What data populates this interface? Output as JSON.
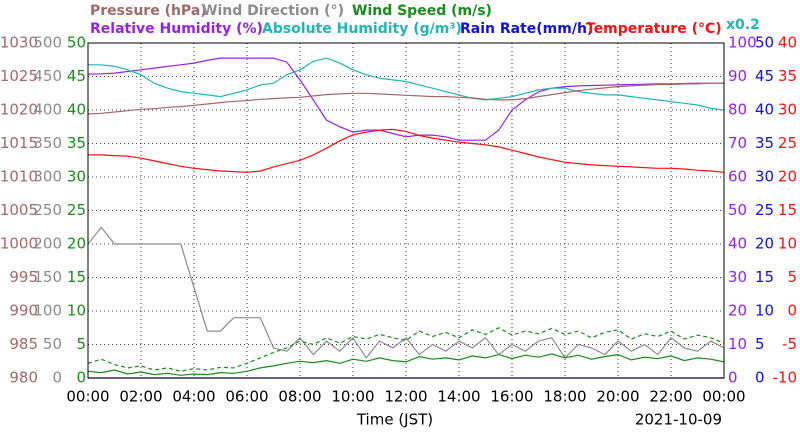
{
  "chart_data": {
    "type": "line",
    "x": [
      0,
      0.5,
      1,
      1.5,
      2,
      2.5,
      3,
      3.5,
      4,
      4.5,
      5,
      5.5,
      6,
      6.5,
      7,
      7.5,
      8,
      8.5,
      9,
      9.5,
      10,
      10.5,
      11,
      11.5,
      12,
      12.5,
      13,
      13.5,
      14,
      14.5,
      15,
      15.5,
      16,
      16.5,
      17,
      17.5,
      18,
      18.5,
      19,
      19.5,
      20,
      20.5,
      21,
      21.5,
      22,
      22.5,
      23,
      23.5,
      24
    ],
    "xlim": [
      0,
      24
    ],
    "xticks": [
      {
        "value": 0,
        "label": "00:00"
      },
      {
        "value": 2,
        "label": "02:00"
      },
      {
        "value": 4,
        "label": "04:00"
      },
      {
        "value": 6,
        "label": "06:00"
      },
      {
        "value": 8,
        "label": "08:00"
      },
      {
        "value": 10,
        "label": "10:00"
      },
      {
        "value": 12,
        "label": "12:00"
      },
      {
        "value": 14,
        "label": "14:00"
      },
      {
        "value": 16,
        "label": "16:00"
      },
      {
        "value": 18,
        "label": "18:00"
      },
      {
        "value": 20,
        "label": "20:00"
      },
      {
        "value": 22,
        "label": "22:00"
      },
      {
        "value": 24,
        "label": "00:00"
      }
    ],
    "xlabel": "Time (JST)",
    "date": "2021-10-09",
    "grid": true,
    "axes": [
      {
        "label": "Pressure (hPa)",
        "color": "#a06a6a",
        "side": "left",
        "lim": [
          980,
          1030
        ],
        "ticks": [
          980,
          985,
          990,
          995,
          1000,
          1005,
          1010,
          1015,
          1020,
          1025,
          1030
        ]
      },
      {
        "label": "Wind Direction (°)",
        "color": "#8c8c8c",
        "side": "left",
        "lim": [
          0,
          500
        ],
        "ticks": [
          0,
          50,
          100,
          150,
          200,
          250,
          300,
          350,
          400,
          450,
          500
        ]
      },
      {
        "label": "Wind Speed (m/s)",
        "color": "#1a8c1a",
        "side": "left",
        "lim": [
          0,
          50
        ],
        "ticks": [
          0,
          5,
          10,
          15,
          20,
          25,
          30,
          35,
          40,
          45,
          50
        ]
      },
      {
        "label": "Relative Humidity (%)",
        "color": "#9a20e8",
        "side": "right",
        "lim": [
          0,
          100
        ],
        "ticks": [
          0,
          10,
          20,
          30,
          40,
          50,
          60,
          70,
          80,
          90,
          100
        ]
      },
      {
        "label": "Absolute Humidity (g/m³)",
        "color": "#22b5b5",
        "lim": [
          0,
          20
        ],
        "scale_label": "x0.2"
      },
      {
        "label": "Rain Rate(mm/h)",
        "color": "#1010e0",
        "side": "right",
        "lim": [
          0,
          50
        ],
        "ticks": [
          0,
          5,
          10,
          15,
          20,
          25,
          30,
          35,
          40,
          45,
          50
        ]
      },
      {
        "label": "Temperature (°C)",
        "color": "#ff1010",
        "side": "right",
        "lim": [
          -10,
          40
        ],
        "ticks": [
          -10,
          -5,
          0,
          5,
          10,
          15,
          20,
          25,
          30,
          35,
          40
        ]
      }
    ],
    "series": [
      {
        "axis": 1,
        "values": [
          200,
          225,
          200,
          200,
          200,
          200,
          200,
          200,
          135,
          70,
          70,
          90,
          90,
          90,
          45,
          40,
          60,
          35,
          55,
          40,
          60,
          30,
          55,
          45,
          60,
          35,
          50,
          40,
          55,
          45,
          60,
          35,
          50,
          40,
          55,
          60,
          30,
          50,
          45,
          35,
          55,
          40,
          50,
          35,
          60,
          45,
          40,
          55,
          45
        ]
      },
      {
        "axis": 2,
        "style": "dashed",
        "values": [
          2.2,
          2.8,
          2,
          1.5,
          1.8,
          1.2,
          1.5,
          1,
          1.4,
          1.2,
          1.6,
          1.5,
          2.2,
          3,
          3.8,
          4.5,
          5.5,
          5,
          6,
          5.2,
          6.2,
          5.8,
          6.5,
          6,
          5.6,
          7,
          6.2,
          6.8,
          6,
          7.2,
          6.5,
          7.5,
          6.4,
          7,
          6.6,
          7.4,
          6.5,
          7,
          6,
          6.8,
          7.2,
          5.8,
          6.6,
          6.2,
          7,
          5.8,
          6.4,
          6,
          5.2
        ]
      },
      {
        "axis": 2,
        "values": [
          1,
          0.8,
          1.2,
          0.6,
          0.9,
          0.5,
          0.7,
          0.4,
          0.6,
          0.5,
          0.8,
          0.7,
          1,
          1.5,
          1.8,
          2.2,
          2.5,
          2.3,
          2.6,
          2.2,
          2.8,
          2.5,
          3,
          2.6,
          2.4,
          3.2,
          2.8,
          3,
          2.7,
          3.3,
          3,
          3.5,
          2.9,
          3.4,
          3.1,
          3.6,
          3,
          3.4,
          2.8,
          3.2,
          3.5,
          2.7,
          3.1,
          2.9,
          3.3,
          2.6,
          3,
          2.8,
          2.4
        ]
      },
      {
        "axis": 5,
        "values": [
          0,
          0,
          0,
          0,
          0,
          0,
          0,
          0,
          0,
          0,
          0,
          0,
          0,
          0,
          0,
          0,
          0,
          0,
          0,
          0,
          0,
          0,
          0,
          0,
          0,
          0,
          0,
          0,
          0,
          0,
          0,
          0,
          0,
          0,
          0,
          0,
          0,
          0,
          0,
          0,
          0,
          0,
          0,
          0,
          0,
          0,
          0,
          0,
          0
        ]
      },
      {
        "axis": 3,
        "values": [
          90.7,
          90.8,
          91,
          91.5,
          92,
          92.5,
          93,
          93.5,
          94,
          94.8,
          95.5,
          95.5,
          95.5,
          95.5,
          95.5,
          94.3,
          89,
          83,
          77,
          75,
          73.4,
          74,
          74,
          73,
          72,
          72.5,
          72.5,
          72,
          71,
          71,
          71,
          74,
          80,
          83,
          85.4,
          86.5,
          87,
          87.2,
          87.3,
          87.4,
          87.5,
          87.6,
          87.7,
          87.8,
          87.8,
          87.9,
          88,
          88,
          88
        ]
      },
      {
        "axis": 4,
        "values": [
          18.7,
          18.7,
          18.6,
          18.4,
          18.1,
          17.6,
          17.3,
          17.1,
          17,
          16.9,
          16.8,
          17,
          17.2,
          17.5,
          17.6,
          18.1,
          18.4,
          18.9,
          19.1,
          18.8,
          18.4,
          18.1,
          17.9,
          17.8,
          17.7,
          17.5,
          17.3,
          17.1,
          16.9,
          16.7,
          16.6,
          16.7,
          16.8,
          17,
          17.2,
          17.3,
          17.3,
          17.1,
          17,
          16.9,
          16.9,
          16.8,
          16.7,
          16.6,
          16.5,
          16.4,
          16.3,
          16.1,
          16
        ]
      },
      {
        "axis": 0,
        "values": [
          1019.4,
          1019.5,
          1019.7,
          1019.9,
          1020.1,
          1020.2,
          1020.4,
          1020.5,
          1020.7,
          1020.9,
          1021.1,
          1021.3,
          1021.4,
          1021.6,
          1021.7,
          1021.8,
          1021.9,
          1022.1,
          1022.3,
          1022.4,
          1022.5,
          1022.5,
          1022.4,
          1022.3,
          1022.2,
          1022.1,
          1022,
          1022,
          1021.9,
          1021.8,
          1021.6,
          1021.5,
          1021.5,
          1021.7,
          1022,
          1022.3,
          1022.6,
          1022.9,
          1023.1,
          1023.3,
          1023.5,
          1023.6,
          1023.7,
          1023.8,
          1023.8,
          1023.9,
          1023.9,
          1024,
          1024
        ]
      },
      {
        "axis": 6,
        "values": [
          23.3,
          23.3,
          23.2,
          23.1,
          22.8,
          22.4,
          22,
          21.6,
          21.3,
          21.1,
          20.9,
          20.8,
          20.7,
          20.9,
          21.5,
          22,
          22.5,
          23.3,
          24.3,
          25.4,
          26.3,
          26.7,
          27,
          27.1,
          26.8,
          26.2,
          25.8,
          25.5,
          25.2,
          25,
          24.8,
          24.5,
          24,
          23.5,
          23,
          22.6,
          22.2,
          22,
          21.8,
          21.7,
          21.6,
          21.5,
          21.4,
          21.3,
          21.3,
          21.2,
          21,
          20.9,
          20.7
        ]
      }
    ]
  }
}
